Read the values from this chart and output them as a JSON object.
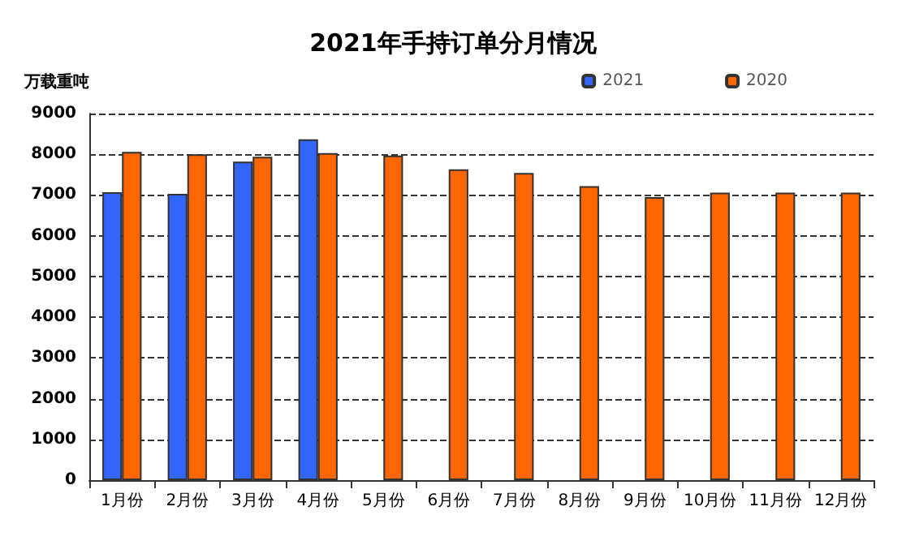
{
  "chart_data": {
    "type": "bar",
    "title": "2021年手持订单分月情况",
    "ylabel": "万载重吨",
    "categories": [
      "1月份",
      "2月份",
      "3月份",
      "4月份",
      "5月份",
      "6月份",
      "7月份",
      "8月份",
      "9月份",
      "10月份",
      "11月份",
      "12月份"
    ],
    "series": [
      {
        "name": "2021",
        "color": "#3366ff",
        "values": [
          7070,
          7030,
          7820,
          8370,
          null,
          null,
          null,
          null,
          null,
          null,
          null,
          null
        ]
      },
      {
        "name": "2020",
        "color": "#ff6600",
        "values": [
          8060,
          8000,
          7940,
          8030,
          7970,
          7630,
          7540,
          7220,
          6950,
          7060,
          7060,
          7060
        ]
      }
    ],
    "ylim": [
      0,
      9000
    ],
    "yticks": [
      0,
      1000,
      2000,
      3000,
      4000,
      5000,
      6000,
      7000,
      8000,
      9000
    ],
    "grid": "y",
    "legend": "top right"
  }
}
